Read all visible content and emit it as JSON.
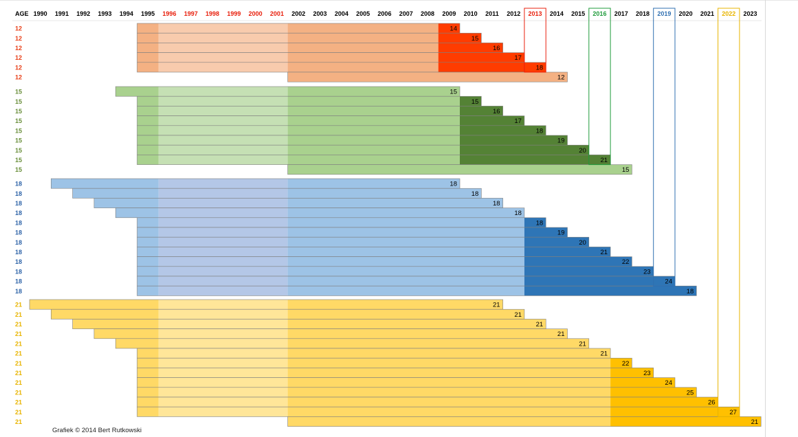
{
  "footer": {
    "credit": "Grafiek © 2014 Bert Rutkowski"
  },
  "colors": {
    "year_default": "#000000",
    "year_red": "#e8200d",
    "year_green": "#1f9b3b",
    "year_blue": "#2f6fb0",
    "year_yellow": "#e8b400",
    "age_12": "#e8401a",
    "age_15": "#6a8f3b",
    "age_18": "#2f64a8",
    "age_21": "#e8b400"
  },
  "chart_data": {
    "type": "bar",
    "subtype": "stacked horizontal timeline (gantt-like)",
    "corner_label": "AGE",
    "x_years": [
      {
        "year": "1990",
        "color": "default"
      },
      {
        "year": "1991",
        "color": "default"
      },
      {
        "year": "1992",
        "color": "default"
      },
      {
        "year": "1993",
        "color": "default"
      },
      {
        "year": "1994",
        "color": "default"
      },
      {
        "year": "1995",
        "color": "default"
      },
      {
        "year": "1996",
        "color": "red"
      },
      {
        "year": "1997",
        "color": "red"
      },
      {
        "year": "1998",
        "color": "red"
      },
      {
        "year": "1999",
        "color": "red"
      },
      {
        "year": "2000",
        "color": "red"
      },
      {
        "year": "2001",
        "color": "red"
      },
      {
        "year": "2002",
        "color": "default"
      },
      {
        "year": "2003",
        "color": "default"
      },
      {
        "year": "2004",
        "color": "default"
      },
      {
        "year": "2005",
        "color": "default"
      },
      {
        "year": "2006",
        "color": "default"
      },
      {
        "year": "2007",
        "color": "default"
      },
      {
        "year": "2008",
        "color": "default"
      },
      {
        "year": "2009",
        "color": "default"
      },
      {
        "year": "2010",
        "color": "default"
      },
      {
        "year": "2011",
        "color": "default"
      },
      {
        "year": "2012",
        "color": "default"
      },
      {
        "year": "2013",
        "color": "red"
      },
      {
        "year": "2014",
        "color": "default"
      },
      {
        "year": "2015",
        "color": "default"
      },
      {
        "year": "2016",
        "color": "green"
      },
      {
        "year": "2017",
        "color": "default"
      },
      {
        "year": "2018",
        "color": "default"
      },
      {
        "year": "2019",
        "color": "blue"
      },
      {
        "year": "2020",
        "color": "default"
      },
      {
        "year": "2021",
        "color": "default"
      },
      {
        "year": "2022",
        "color": "yellow"
      },
      {
        "year": "2023",
        "color": "default"
      }
    ],
    "group_palettes": {
      "12": {
        "c0": "#f4b183",
        "c1": "#f8cbad",
        "c2": "#f4b183",
        "c3": "#ff3c00",
        "c4": "#f4b183"
      },
      "15": {
        "c0": "#a9d18e",
        "c1": "#c5e0b4",
        "c2": "#a9d18e",
        "c3": "#548235",
        "c4": "#a9d18e"
      },
      "18": {
        "c0": "#9dc3e6",
        "c1": "#b4c7e7",
        "c2": "#9dc3e6",
        "c3": "#2e75b6",
        "c4": "#9dc3e6"
      },
      "21": {
        "c0": "#ffd966",
        "c1": "#ffe699",
        "c2": "#ffd966",
        "c3": "#ffc000",
        "c4": "#ffd966"
      }
    },
    "groups": [
      {
        "age": "12",
        "rows": [
          {
            "start": 1995,
            "dark_start": 2009,
            "end": 2009,
            "label": "14"
          },
          {
            "start": 1995,
            "dark_start": 2009,
            "end": 2010,
            "label": "15"
          },
          {
            "start": 1995,
            "dark_start": 2009,
            "end": 2011,
            "label": "16"
          },
          {
            "start": 1995,
            "dark_start": 2009,
            "end": 2012,
            "label": "17"
          },
          {
            "start": 1995,
            "dark_start": 2009,
            "end": 2013,
            "label": "18"
          },
          {
            "start": 2002,
            "dark_start": null,
            "end": 2014,
            "label": "12"
          }
        ]
      },
      {
        "age": "15",
        "rows": [
          {
            "start": 1994,
            "dark_start": null,
            "end": 2009,
            "label": "15"
          },
          {
            "start": 1995,
            "dark_start": 2010,
            "end": 2010,
            "label": "15"
          },
          {
            "start": 1995,
            "dark_start": 2010,
            "end": 2011,
            "label": "16"
          },
          {
            "start": 1995,
            "dark_start": 2010,
            "end": 2012,
            "label": "17"
          },
          {
            "start": 1995,
            "dark_start": 2010,
            "end": 2013,
            "label": "18"
          },
          {
            "start": 1995,
            "dark_start": 2010,
            "end": 2014,
            "label": "19"
          },
          {
            "start": 1995,
            "dark_start": 2010,
            "end": 2015,
            "label": "20"
          },
          {
            "start": 1995,
            "dark_start": 2010,
            "end": 2016,
            "label": "21"
          },
          {
            "start": 2002,
            "dark_start": null,
            "end": 2017,
            "label": "15"
          }
        ]
      },
      {
        "age": "18",
        "rows": [
          {
            "start": 1991,
            "dark_start": null,
            "end": 2009,
            "label": "18"
          },
          {
            "start": 1992,
            "dark_start": null,
            "end": 2010,
            "label": "18"
          },
          {
            "start": 1993,
            "dark_start": null,
            "end": 2011,
            "label": "18"
          },
          {
            "start": 1994,
            "dark_start": null,
            "end": 2012,
            "label": "18"
          },
          {
            "start": 1995,
            "dark_start": 2013,
            "end": 2013,
            "label": "18"
          },
          {
            "start": 1995,
            "dark_start": 2013,
            "end": 2014,
            "label": "19"
          },
          {
            "start": 1995,
            "dark_start": 2013,
            "end": 2015,
            "label": "20"
          },
          {
            "start": 1995,
            "dark_start": 2013,
            "end": 2016,
            "label": "21"
          },
          {
            "start": 1995,
            "dark_start": 2013,
            "end": 2017,
            "label": "22"
          },
          {
            "start": 1995,
            "dark_start": 2013,
            "end": 2018,
            "label": "23"
          },
          {
            "start": 1995,
            "dark_start": 2013,
            "end": 2019,
            "label": "24"
          },
          {
            "start": 1995,
            "dark_start": 2013,
            "end": 2020,
            "label": "18"
          }
        ]
      },
      {
        "age": "21",
        "rows": [
          {
            "start": 1990,
            "dark_start": null,
            "end": 2011,
            "label": "21"
          },
          {
            "start": 1991,
            "dark_start": null,
            "end": 2012,
            "label": "21"
          },
          {
            "start": 1992,
            "dark_start": null,
            "end": 2013,
            "label": "21"
          },
          {
            "start": 1993,
            "dark_start": null,
            "end": 2014,
            "label": "21"
          },
          {
            "start": 1994,
            "dark_start": null,
            "end": 2015,
            "label": "21"
          },
          {
            "start": 1995,
            "dark_start": null,
            "end": 2016,
            "label": "21"
          },
          {
            "start": 1995,
            "dark_start": 2017,
            "end": 2017,
            "label": "22"
          },
          {
            "start": 1995,
            "dark_start": 2017,
            "end": 2018,
            "label": "23"
          },
          {
            "start": 1995,
            "dark_start": 2017,
            "end": 2019,
            "label": "24"
          },
          {
            "start": 1995,
            "dark_start": 2017,
            "end": 2020,
            "label": "25"
          },
          {
            "start": 1995,
            "dark_start": 2017,
            "end": 2021,
            "label": "26"
          },
          {
            "start": 1995,
            "dark_start": 2017,
            "end": 2022,
            "label": "27"
          },
          {
            "start": 2002,
            "dark_start": 2017,
            "end": 2023,
            "label": "21"
          }
        ]
      }
    ],
    "highlight_years": [
      {
        "year": 2013,
        "color": "red",
        "group": "12"
      },
      {
        "year": 2016,
        "color": "green",
        "group": "15"
      },
      {
        "year": 2019,
        "color": "blue",
        "group": "18"
      },
      {
        "year": 2022,
        "color": "yellow",
        "group": "21"
      }
    ],
    "grid": false
  }
}
